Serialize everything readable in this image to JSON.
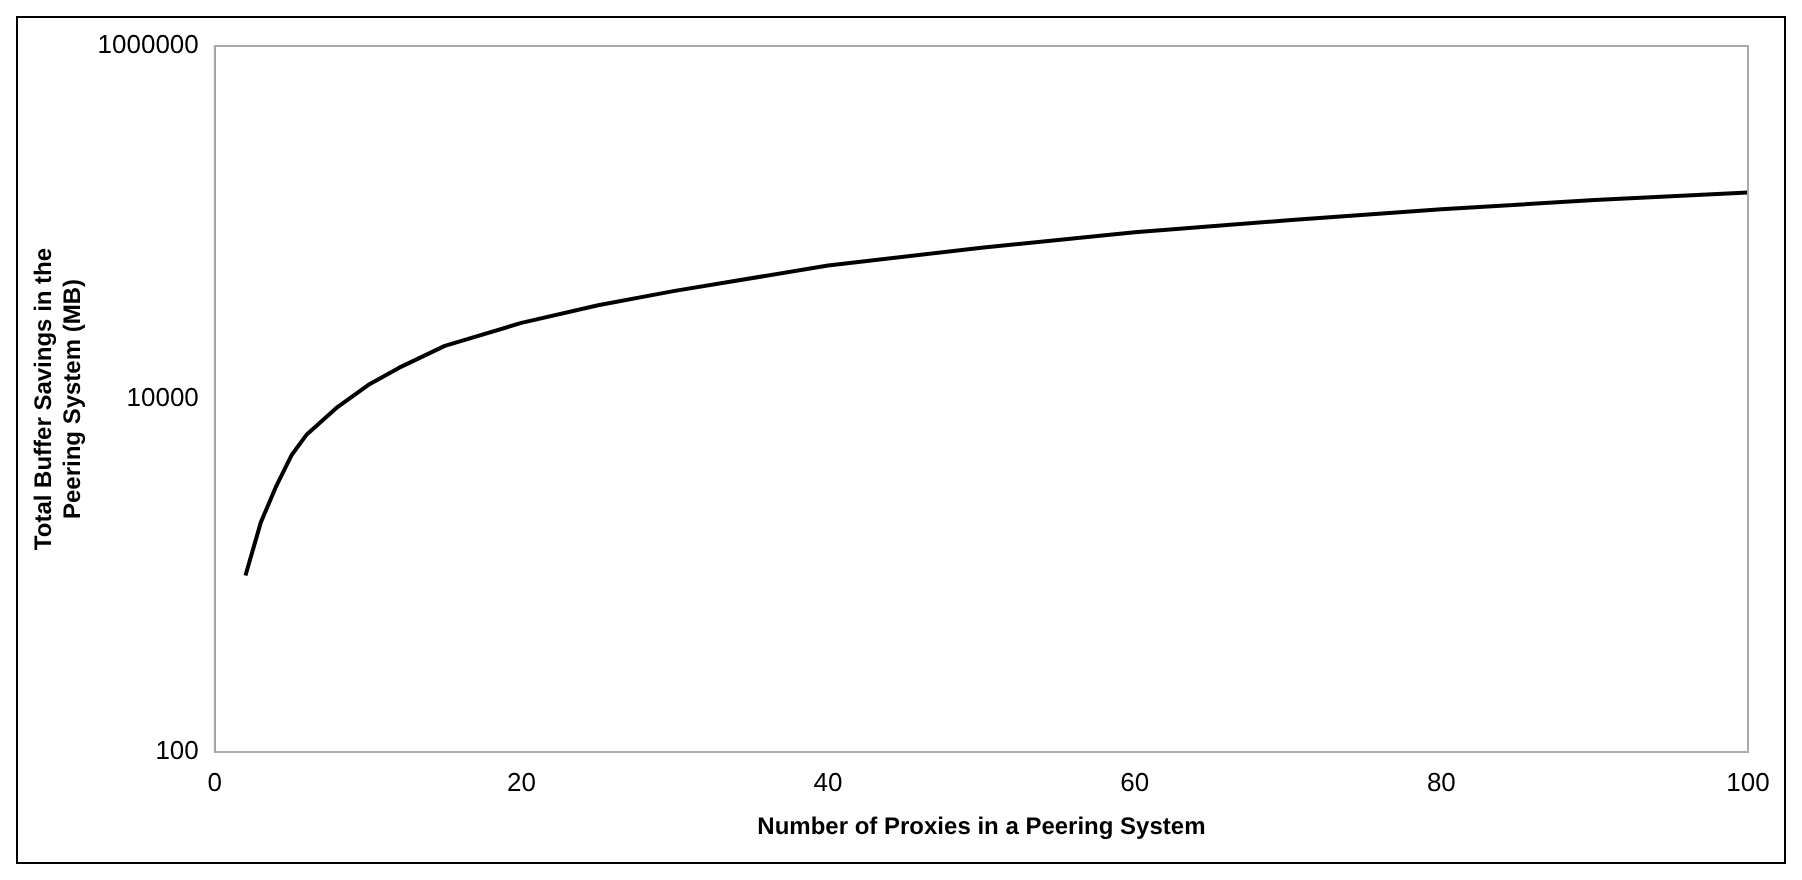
{
  "chart_data": {
    "type": "line",
    "xlabel": "Number of Proxies in a Peering System",
    "ylabel": "Total Buffer Savings in the Peering System (MB)",
    "x": [
      2,
      3,
      4,
      5,
      6,
      8,
      10,
      12,
      15,
      20,
      25,
      30,
      40,
      50,
      60,
      70,
      80,
      90,
      100
    ],
    "series": [
      {
        "color": "#000000",
        "values": [
          1000,
          2000,
          3200,
          4800,
          6300,
          9000,
          12000,
          15000,
          20000,
          27000,
          34000,
          41000,
          57000,
          72000,
          88000,
          103000,
          119000,
          134000,
          148000
        ]
      }
    ],
    "xlim": [
      0,
      100
    ],
    "xticks": [
      0,
      20,
      40,
      60,
      80,
      100
    ],
    "ylim": [
      100,
      1000000
    ],
    "yticks": [
      100,
      10000,
      1000000
    ],
    "log": "y",
    "grid": false,
    "legend": false,
    "marker": "none",
    "line_style": "solid"
  }
}
